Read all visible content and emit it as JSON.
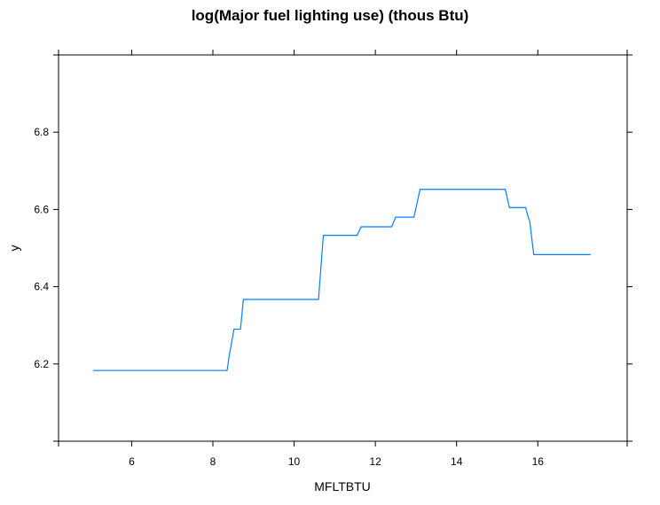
{
  "chart_data": {
    "type": "line",
    "title": "log(Major fuel lighting use) (thous Btu)",
    "xlabel": "MFLTBTU",
    "ylabel": "y",
    "xlim": [
      4.2,
      18.2
    ],
    "ylim": [
      6.0,
      7.0
    ],
    "xticks": [
      6,
      8,
      10,
      12,
      14,
      16
    ],
    "yticks": [
      6.2,
      6.4,
      6.6,
      6.8
    ],
    "xtick_labels": [
      "6",
      "8",
      "10",
      "12",
      "14",
      "16"
    ],
    "ytick_labels": [
      "6.2",
      "6.4",
      "6.6",
      "6.8"
    ],
    "grid": false,
    "series": [
      {
        "color": "#0080ff",
        "x": [
          5.05,
          8.35,
          8.4,
          8.52,
          8.55,
          8.68,
          8.75,
          9.2,
          10.6,
          10.72,
          11.55,
          11.65,
          12.4,
          12.5,
          12.95,
          13.1,
          15.2,
          15.3,
          15.7,
          15.75,
          15.8,
          15.9,
          17.3
        ],
        "y": [
          6.183,
          6.183,
          6.22,
          6.29,
          6.29,
          6.29,
          6.367,
          6.367,
          6.367,
          6.533,
          6.533,
          6.555,
          6.555,
          6.58,
          6.58,
          6.652,
          6.652,
          6.605,
          6.605,
          6.585,
          6.57,
          6.483,
          6.483
        ]
      }
    ]
  }
}
